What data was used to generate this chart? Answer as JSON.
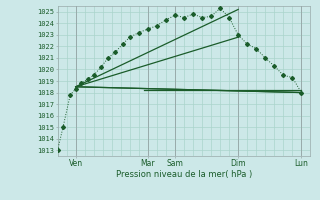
{
  "xlabel": "Pression niveau de la mer( hPa )",
  "background_color": "#cce8e8",
  "grid_color": "#aad4cc",
  "line_color": "#1a5c2a",
  "vline_color": "#99aaaa",
  "ylim": [
    1012.5,
    1025.5
  ],
  "yticks": [
    1013,
    1014,
    1015,
    1016,
    1017,
    1018,
    1019,
    1020,
    1021,
    1022,
    1023,
    1024,
    1025
  ],
  "xlim": [
    0,
    14
  ],
  "xtick_labels": [
    "Ven",
    "Mar",
    "Sam",
    "Dim",
    "Lun"
  ],
  "xtick_positions": [
    1,
    5,
    6.5,
    10,
    13.5
  ],
  "vlines": [
    1,
    5,
    6.5,
    10,
    13.5
  ],
  "series1_x": [
    0,
    0.3,
    0.7,
    1.0,
    1.3,
    1.7,
    2.0,
    2.4,
    2.8,
    3.2,
    3.6,
    4.0,
    4.5,
    5.0,
    5.5,
    6.0,
    6.5,
    7.0,
    7.5,
    8.0,
    8.5,
    9.0,
    9.5,
    10.0,
    10.5,
    11.0,
    11.5,
    12.0,
    12.5,
    13.0,
    13.5
  ],
  "series1_y": [
    1013.0,
    1015.0,
    1017.8,
    1018.3,
    1018.8,
    1019.2,
    1019.5,
    1020.2,
    1021.0,
    1021.5,
    1022.2,
    1022.8,
    1023.2,
    1023.5,
    1023.8,
    1024.3,
    1024.7,
    1024.5,
    1024.8,
    1024.5,
    1024.6,
    1025.3,
    1024.5,
    1023.0,
    1022.2,
    1021.8,
    1021.0,
    1020.3,
    1019.5,
    1019.3,
    1018.0
  ],
  "straight_lines": [
    {
      "x": [
        1.0,
        10.0
      ],
      "y": [
        1018.5,
        1025.2
      ]
    },
    {
      "x": [
        1.0,
        10.0
      ],
      "y": [
        1018.5,
        1022.8
      ]
    },
    {
      "x": [
        1.0,
        13.5
      ],
      "y": [
        1018.5,
        1018.0
      ]
    },
    {
      "x": [
        1.0,
        13.5
      ],
      "y": [
        1018.5,
        1018.0
      ]
    }
  ],
  "hline_y": 1018.2,
  "hline_x_start": 4.8,
  "hline_x_end": 13.5
}
